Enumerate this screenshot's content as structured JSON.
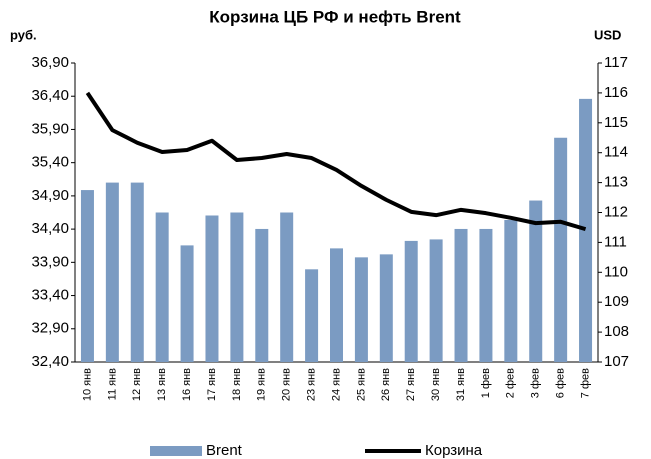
{
  "chart_data": {
    "type": "bar_line",
    "title": "Корзина ЦБ РФ и нефть Brent",
    "ylabel": "руб.",
    "y2label": "USD",
    "categories": [
      "10 янв",
      "11 янв",
      "12 янв",
      "13 янв",
      "16 янв",
      "17 янв",
      "18 янв",
      "19 янв",
      "20 янв",
      "23 янв",
      "24 янв",
      "25 янв",
      "26 янв",
      "27 янв",
      "30 янв",
      "31 янв",
      "1 фев",
      "2 фев",
      "3 фев",
      "6 фев",
      "7 фев"
    ],
    "ylim": [
      32.4,
      36.9
    ],
    "yticks": [
      {
        "value": 32.4,
        "label": "32,40"
      },
      {
        "value": 32.9,
        "label": "32,90"
      },
      {
        "value": 33.4,
        "label": "33,40"
      },
      {
        "value": 33.9,
        "label": "33,90"
      },
      {
        "value": 34.4,
        "label": "34,40"
      },
      {
        "value": 34.9,
        "label": "34,90"
      },
      {
        "value": 35.4,
        "label": "35,40"
      },
      {
        "value": 35.9,
        "label": "35,90"
      },
      {
        "value": 36.4,
        "label": "36,40"
      },
      {
        "value": 36.9,
        "label": "36,90"
      }
    ],
    "y2lim": [
      107,
      117
    ],
    "y2ticks": [
      107,
      108,
      109,
      110,
      111,
      112,
      113,
      114,
      115,
      116,
      117
    ],
    "series": [
      {
        "name": "Brent",
        "type": "bar",
        "axis": "y2",
        "color": "#7b9bc2",
        "values": [
          112.75,
          113.0,
          113.0,
          112.0,
          110.9,
          111.9,
          112.0,
          111.45,
          112.0,
          110.1,
          110.8,
          110.5,
          110.6,
          111.05,
          111.1,
          111.45,
          111.45,
          111.75,
          112.4,
          114.5,
          115.8
        ]
      },
      {
        "name": "Корзина",
        "type": "line",
        "axis": "y",
        "color": "#000000",
        "values": [
          36.45,
          35.89,
          35.7,
          35.56,
          35.59,
          35.73,
          35.44,
          35.47,
          35.53,
          35.47,
          35.29,
          35.05,
          34.84,
          34.66,
          34.61,
          34.69,
          34.64,
          34.57,
          34.49,
          34.51,
          34.4
        ]
      }
    ]
  }
}
